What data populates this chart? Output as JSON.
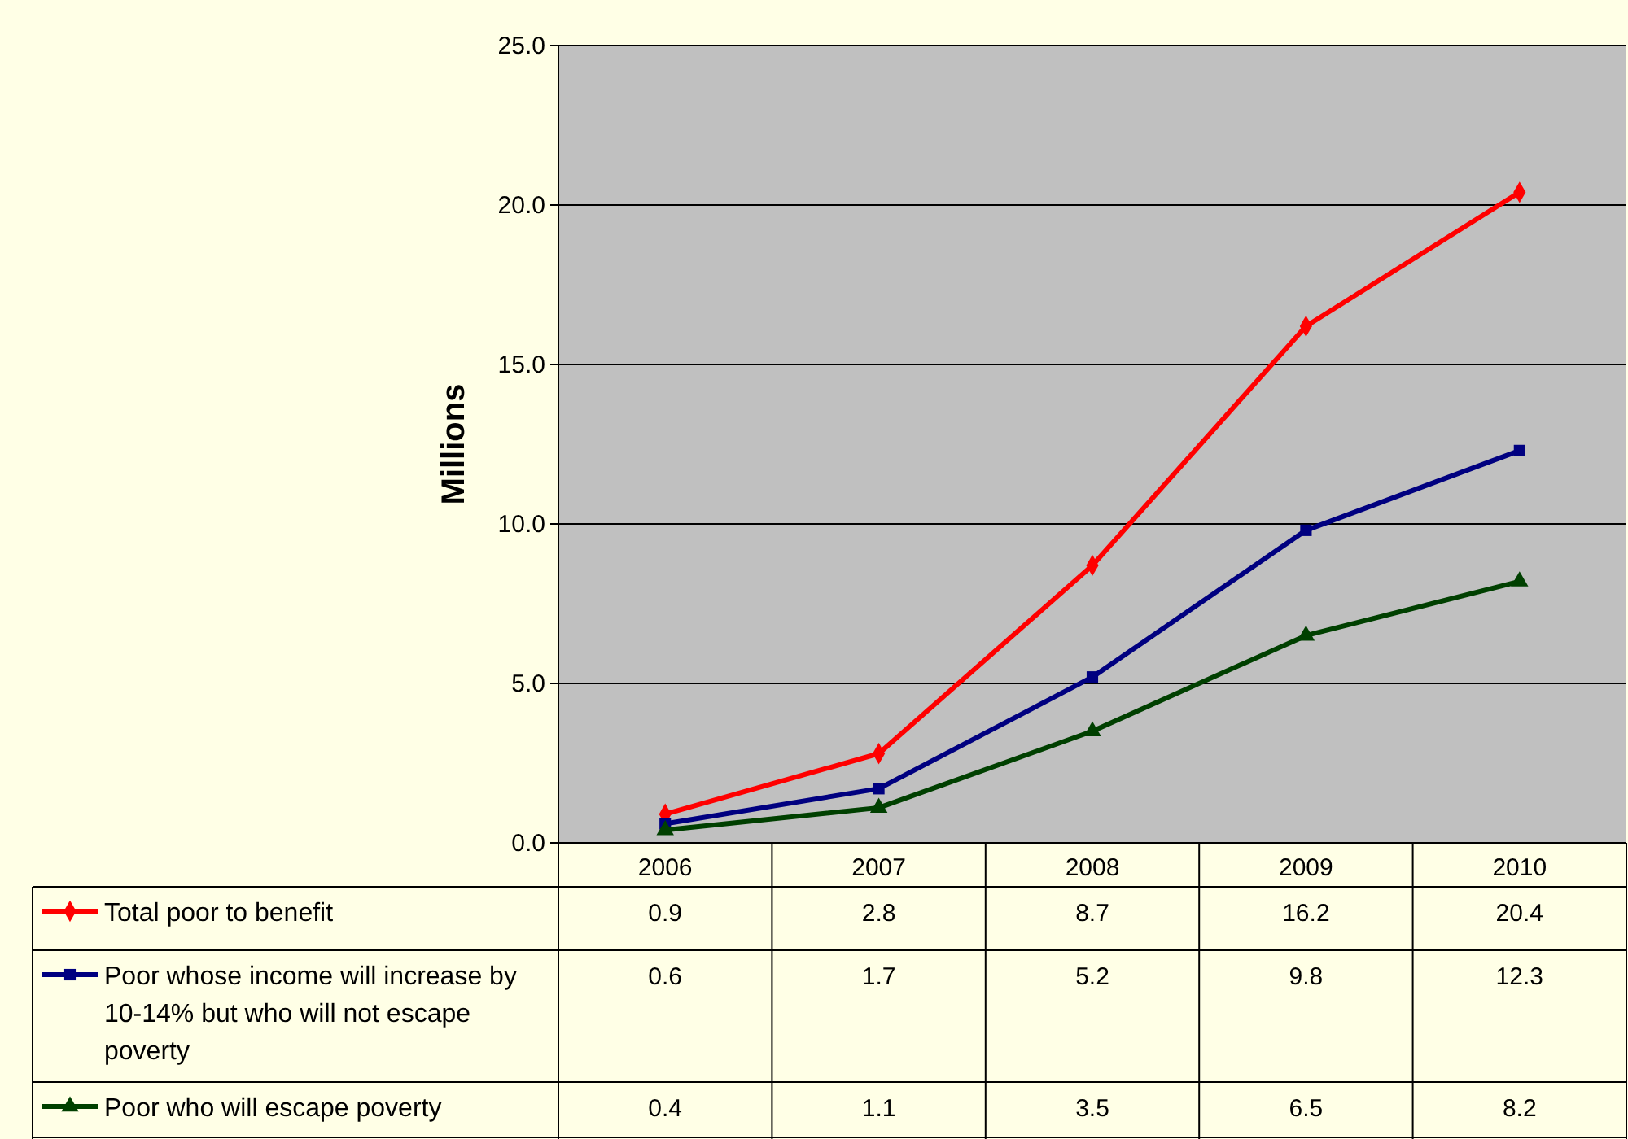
{
  "chart_data": {
    "type": "line",
    "ylabel": "Millions",
    "categories": [
      "2006",
      "2007",
      "2008",
      "2009",
      "2010"
    ],
    "series": [
      {
        "name": "Total poor to benefit",
        "color": "#ff0000",
        "marker": "diamond",
        "values": [
          0.9,
          2.8,
          8.7,
          16.2,
          20.4
        ]
      },
      {
        "name": "Poor whose income will increase by 10-14% but who will not escape poverty",
        "color": "#000080",
        "marker": "square",
        "values": [
          0.6,
          1.7,
          5.2,
          9.8,
          12.3
        ]
      },
      {
        "name": "Poor who will escape poverty",
        "color": "#004000",
        "marker": "triangle",
        "values": [
          0.4,
          1.1,
          3.5,
          6.5,
          8.2
        ]
      }
    ],
    "ylim": [
      0,
      25
    ],
    "yticks": [
      {
        "value": 0,
        "label": "0.0"
      },
      {
        "value": 5,
        "label": "5.0"
      },
      {
        "value": 10,
        "label": "10.0"
      },
      {
        "value": 15,
        "label": "15.0"
      },
      {
        "value": 20,
        "label": "20.0"
      },
      {
        "value": 25,
        "label": "25.0"
      }
    ],
    "grid": "y",
    "legend": "bottom",
    "data_labels": true
  }
}
